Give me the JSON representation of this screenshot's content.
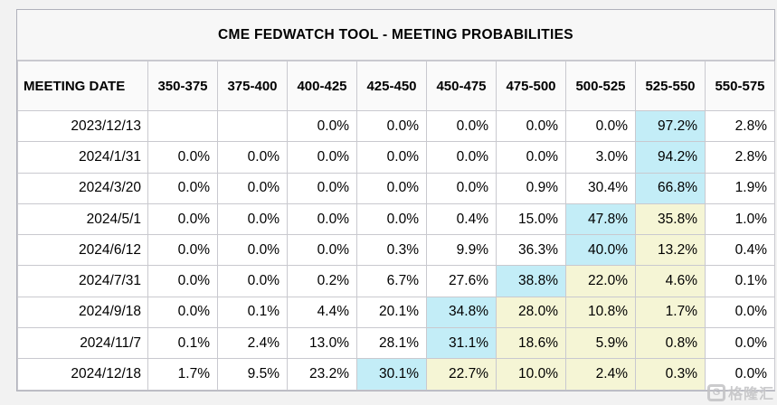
{
  "page": {
    "background": "#f2f2f2"
  },
  "table": {
    "title": "CME FEDWATCH TOOL - MEETING PROBABILITIES",
    "date_column_header": "MEETING DATE",
    "rate_columns": [
      "350-375",
      "375-400",
      "400-425",
      "425-450",
      "450-475",
      "475-500",
      "500-525",
      "525-550",
      "550-575"
    ],
    "colors": {
      "cyan": "#c3edf7",
      "yellow": "#f5f5d5"
    },
    "rows": [
      {
        "date": "2023/12/13",
        "values": [
          "",
          "",
          "0.0%",
          "0.0%",
          "0.0%",
          "0.0%",
          "0.0%",
          "97.2%",
          "2.8%"
        ],
        "highlight": [
          "",
          "",
          "",
          "",
          "",
          "",
          "",
          "cyan",
          ""
        ]
      },
      {
        "date": "2024/1/31",
        "values": [
          "0.0%",
          "0.0%",
          "0.0%",
          "0.0%",
          "0.0%",
          "0.0%",
          "3.0%",
          "94.2%",
          "2.8%"
        ],
        "highlight": [
          "",
          "",
          "",
          "",
          "",
          "",
          "",
          "cyan",
          ""
        ]
      },
      {
        "date": "2024/3/20",
        "values": [
          "0.0%",
          "0.0%",
          "0.0%",
          "0.0%",
          "0.0%",
          "0.9%",
          "30.4%",
          "66.8%",
          "1.9%"
        ],
        "highlight": [
          "",
          "",
          "",
          "",
          "",
          "",
          "",
          "cyan",
          ""
        ]
      },
      {
        "date": "2024/5/1",
        "values": [
          "0.0%",
          "0.0%",
          "0.0%",
          "0.0%",
          "0.4%",
          "15.0%",
          "47.8%",
          "35.8%",
          "1.0%"
        ],
        "highlight": [
          "",
          "",
          "",
          "",
          "",
          "",
          "cyan",
          "yellow",
          ""
        ]
      },
      {
        "date": "2024/6/12",
        "values": [
          "0.0%",
          "0.0%",
          "0.0%",
          "0.3%",
          "9.9%",
          "36.3%",
          "40.0%",
          "13.2%",
          "0.4%"
        ],
        "highlight": [
          "",
          "",
          "",
          "",
          "",
          "",
          "cyan",
          "yellow",
          ""
        ]
      },
      {
        "date": "2024/7/31",
        "values": [
          "0.0%",
          "0.0%",
          "0.2%",
          "6.7%",
          "27.6%",
          "38.8%",
          "22.0%",
          "4.6%",
          "0.1%"
        ],
        "highlight": [
          "",
          "",
          "",
          "",
          "",
          "cyan",
          "yellow",
          "yellow",
          ""
        ]
      },
      {
        "date": "2024/9/18",
        "values": [
          "0.0%",
          "0.1%",
          "4.4%",
          "20.1%",
          "34.8%",
          "28.0%",
          "10.8%",
          "1.7%",
          "0.0%"
        ],
        "highlight": [
          "",
          "",
          "",
          "",
          "cyan",
          "yellow",
          "yellow",
          "yellow",
          ""
        ]
      },
      {
        "date": "2024/11/7",
        "values": [
          "0.1%",
          "2.4%",
          "13.0%",
          "28.1%",
          "31.1%",
          "18.6%",
          "5.9%",
          "0.8%",
          "0.0%"
        ],
        "highlight": [
          "",
          "",
          "",
          "",
          "cyan",
          "yellow",
          "yellow",
          "yellow",
          ""
        ]
      },
      {
        "date": "2024/12/18",
        "values": [
          "1.7%",
          "9.5%",
          "23.2%",
          "30.1%",
          "22.7%",
          "10.0%",
          "2.4%",
          "0.3%",
          "0.0%"
        ],
        "highlight": [
          "",
          "",
          "",
          "cyan",
          "yellow",
          "yellow",
          "yellow",
          "yellow",
          ""
        ]
      }
    ]
  },
  "watermark": {
    "logo_letter": "G",
    "text": "格隆汇"
  },
  "chart_data": {
    "type": "table",
    "title": "CME FEDWATCH TOOL - MEETING PROBABILITIES",
    "columns": [
      "MEETING DATE",
      "350-375",
      "375-400",
      "400-425",
      "425-450",
      "450-475",
      "475-500",
      "500-525",
      "525-550",
      "550-575"
    ],
    "rows": [
      [
        "2023/12/13",
        null,
        null,
        0.0,
        0.0,
        0.0,
        0.0,
        0.0,
        97.2,
        2.8
      ],
      [
        "2024/1/31",
        0.0,
        0.0,
        0.0,
        0.0,
        0.0,
        0.0,
        3.0,
        94.2,
        2.8
      ],
      [
        "2024/3/20",
        0.0,
        0.0,
        0.0,
        0.0,
        0.0,
        0.9,
        30.4,
        66.8,
        1.9
      ],
      [
        "2024/5/1",
        0.0,
        0.0,
        0.0,
        0.0,
        0.4,
        15.0,
        47.8,
        35.8,
        1.0
      ],
      [
        "2024/6/12",
        0.0,
        0.0,
        0.0,
        0.3,
        9.9,
        36.3,
        40.0,
        13.2,
        0.4
      ],
      [
        "2024/7/31",
        0.0,
        0.0,
        0.2,
        6.7,
        27.6,
        38.8,
        22.0,
        4.6,
        0.1
      ],
      [
        "2024/9/18",
        0.0,
        0.1,
        4.4,
        20.1,
        34.8,
        28.0,
        10.8,
        1.7,
        0.0
      ],
      [
        "2024/11/7",
        0.1,
        2.4,
        13.0,
        28.1,
        31.1,
        18.6,
        5.9,
        0.8,
        0.0
      ],
      [
        "2024/12/18",
        1.7,
        9.5,
        23.2,
        30.1,
        22.7,
        10.0,
        2.4,
        0.3,
        0.0
      ]
    ],
    "units": "percent",
    "notes_highlight": "cyan = highest probability cell per meeting; yellow = cells between the peak and the 525-550 column"
  }
}
